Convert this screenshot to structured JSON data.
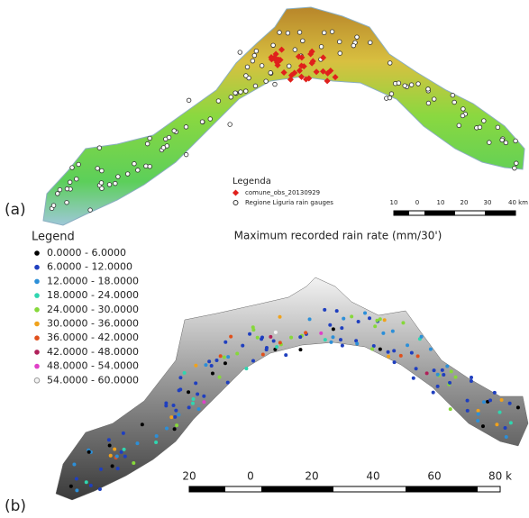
{
  "panel_a": {
    "label": "(a)",
    "legend": {
      "title": "Legenda",
      "items": [
        {
          "label": "comune_obs_20130929",
          "color": "#e0201c",
          "shape": "diamond"
        },
        {
          "label": "Regione Liguria rain gauges",
          "color": "#ffffff",
          "shape": "circle"
        }
      ]
    },
    "scale_labels": [
      "10",
      "0",
      "10",
      "20",
      "30",
      "40 km"
    ]
  },
  "panel_b": {
    "label": "(b)",
    "title": "Maximum recorded rain rate (mm/30')",
    "legend": {
      "title": "Legend",
      "items": [
        {
          "label": "0.0000 - 6.0000",
          "color": "#000000"
        },
        {
          "label": "6.0000 - 12.0000",
          "color": "#1f3fbf"
        },
        {
          "label": "12.0000 - 18.0000",
          "color": "#2c8fd8"
        },
        {
          "label": "18.0000 - 24.0000",
          "color": "#2fd6b0"
        },
        {
          "label": "24.0000 - 30.0000",
          "color": "#86d83a"
        },
        {
          "label": "30.0000 - 36.0000",
          "color": "#f0a21c"
        },
        {
          "label": "36.0000 - 42.0000",
          "color": "#e0501c"
        },
        {
          "label": "42.0000 - 48.0000",
          "color": "#b0205a"
        },
        {
          "label": "48.0000 - 54.0000",
          "color": "#e040c8"
        },
        {
          "label": "54.0000 - 60.0000",
          "color": "#f4f4f4"
        }
      ]
    },
    "scale_labels": [
      "20",
      "0",
      "20",
      "40",
      "60",
      "80 k"
    ]
  }
}
